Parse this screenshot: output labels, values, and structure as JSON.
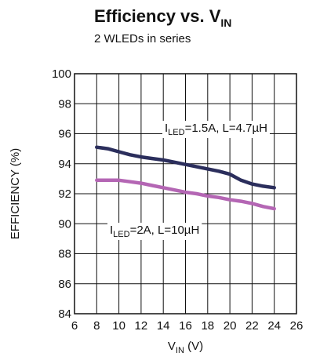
{
  "chart_data": {
    "type": "line",
    "title": {
      "main": "Efficiency vs. V",
      "sub": "IN"
    },
    "subtitle": "2 WLEDs in series",
    "xlabel": {
      "main": "V",
      "sub": "IN",
      "unit": " (V)"
    },
    "ylabel": "EFFICIENCY (%)",
    "xlim": [
      6,
      26
    ],
    "ylim": [
      84,
      100
    ],
    "x_ticks": [
      6,
      8,
      10,
      12,
      14,
      16,
      18,
      20,
      22,
      24,
      26
    ],
    "y_ticks": [
      84,
      86,
      88,
      90,
      92,
      94,
      96,
      98,
      100
    ],
    "x_tick_labels": [
      "6",
      "8",
      "10",
      "12",
      "14",
      "16",
      "18",
      "20",
      "22",
      "24",
      "26"
    ],
    "y_tick_labels": [
      "84",
      "86",
      "88",
      "90",
      "92",
      "94",
      "96",
      "98",
      "100"
    ],
    "grid": true,
    "series": [
      {
        "label": {
          "pre": "I",
          "sub": "LED",
          "post": "=1.5A, L=4.7µH"
        },
        "color": "#2b2e5c",
        "x": [
          8,
          9,
          10,
          11,
          12,
          13,
          14,
          15,
          16,
          17,
          18,
          19,
          20,
          21,
          22,
          23,
          24
        ],
        "y": [
          95.1,
          95.0,
          94.8,
          94.6,
          94.45,
          94.35,
          94.25,
          94.1,
          93.95,
          93.8,
          93.65,
          93.5,
          93.3,
          92.9,
          92.65,
          92.5,
          92.4
        ]
      },
      {
        "label": {
          "pre": "I",
          "sub": "LED",
          "post": "=2A, L=10µH"
        },
        "color": "#b466b4",
        "x": [
          8,
          9,
          10,
          11,
          12,
          13,
          14,
          15,
          16,
          17,
          18,
          19,
          20,
          21,
          22,
          23,
          24
        ],
        "y": [
          92.9,
          92.9,
          92.9,
          92.8,
          92.7,
          92.55,
          92.4,
          92.25,
          92.1,
          92.0,
          91.85,
          91.75,
          91.6,
          91.5,
          91.35,
          91.15,
          91.0
        ]
      }
    ]
  }
}
